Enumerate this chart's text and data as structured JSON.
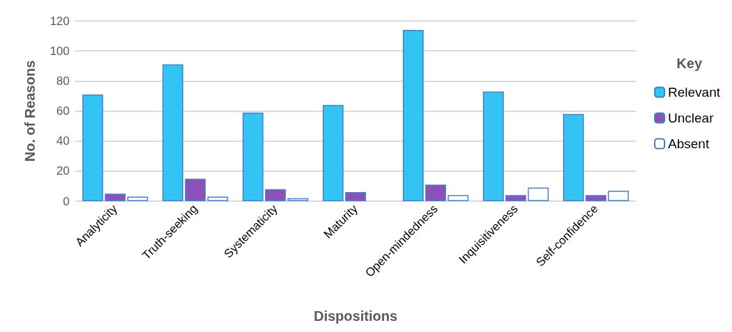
{
  "chart_data": {
    "type": "bar",
    "xlabel": "Dispositions",
    "ylabel": "No. of Reasons",
    "legend_title": "Key",
    "categories": [
      "Analyticity",
      "Truth-seeking",
      "Systematicity",
      "Maturity",
      "Open-mindedness",
      "Inquisitiveness",
      "Self-confidence"
    ],
    "series": [
      {
        "name": "Relevant",
        "color": "#33c4f4",
        "values": [
          71,
          91,
          59,
          64,
          114,
          73,
          58
        ]
      },
      {
        "name": "Unclear",
        "color": "#8a52b8",
        "values": [
          5,
          15,
          8,
          6,
          11,
          4,
          4
        ]
      },
      {
        "name": "Absent",
        "color": "#ffffff",
        "values": [
          3,
          3,
          2,
          null,
          4,
          9,
          7
        ]
      }
    ],
    "ylim": [
      0,
      120
    ],
    "yticks": [
      0,
      20,
      40,
      60,
      80,
      100,
      120
    ],
    "grid": "y",
    "legend": "right"
  }
}
